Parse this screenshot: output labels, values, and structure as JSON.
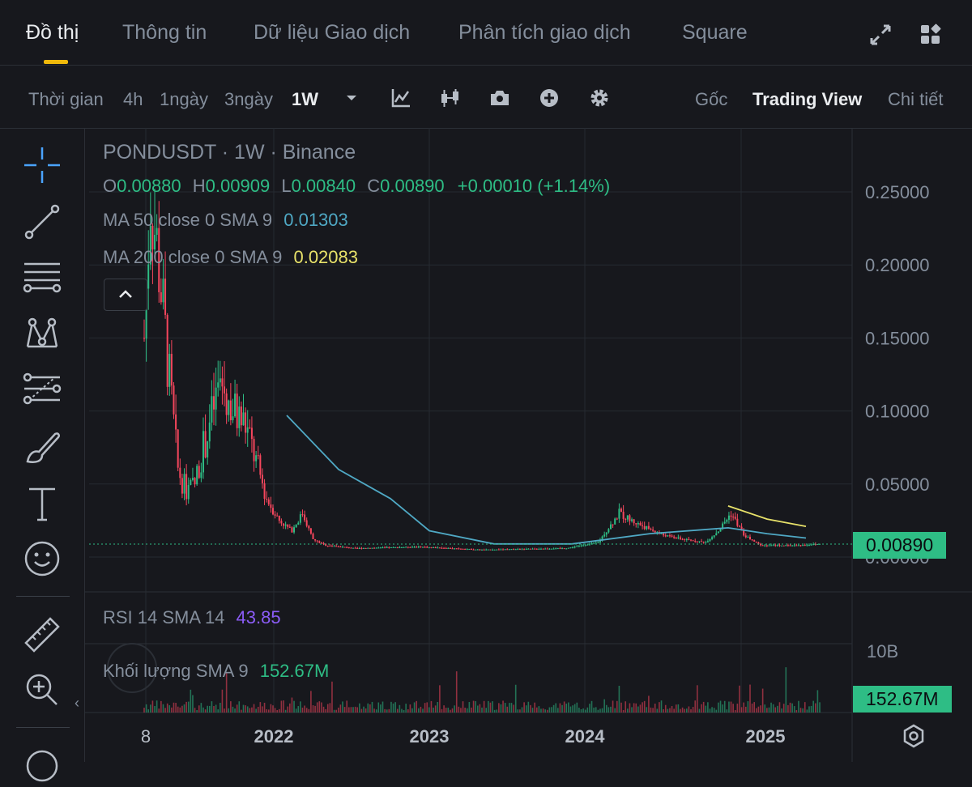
{
  "tabs": [
    {
      "label": "Đồ thị",
      "active": true
    },
    {
      "label": "Thông tin"
    },
    {
      "label": "Dữ liệu Giao dịch"
    },
    {
      "label": "Phân tích giao dịch"
    },
    {
      "label": "Square"
    }
  ],
  "toolbar": {
    "time_label": "Thời gian",
    "intervals": [
      "4h",
      "1ngày",
      "3ngày",
      "1W"
    ],
    "selected_interval": "1W",
    "views": [
      "Gốc",
      "Trading View",
      "Chi tiết"
    ],
    "selected_view": "Trading View"
  },
  "chart_header": {
    "symbol_line": "PONDUSDT · 1W · Binance",
    "o_label": "O",
    "o": "0.00880",
    "h_label": "H",
    "h": "0.00909",
    "l_label": "L",
    "l": "0.00840",
    "c_label": "C",
    "c": "0.00890",
    "change": "+0.00010 (+1.14%)"
  },
  "indicators": {
    "ma50_label": "MA 50 close 0 SMA 9",
    "ma50_value": "0.01303",
    "ma200_label": "MA 200 close 0 SMA 9",
    "ma200_value": "0.02083",
    "rsi_label": "RSI 14 SMA 14",
    "rsi_value": "43.85",
    "vol_label": "Khối lượng SMA 9",
    "vol_value": "152.67M"
  },
  "price_badge": "0.00890",
  "volume_badge": "152.67M",
  "volume_axis_label": "10B",
  "colors": {
    "up": "#2ebd85",
    "down": "#f6465d",
    "ma50": "#4fa8c4",
    "ma200": "#e8e26a",
    "rsi": "#8b5cf6",
    "accent": "#f0b90b",
    "background": "#17181d"
  },
  "chart_data": {
    "type": "candlestick",
    "title": "PONDUSDT · 1W · Binance",
    "y_ticks": [
      "0.00000",
      "0.05000",
      "0.10000",
      "0.15000",
      "0.20000",
      "0.25000"
    ],
    "ylim": [
      0,
      0.265
    ],
    "x_ticks": [
      "8",
      "2022",
      "2023",
      "2024",
      "2025"
    ],
    "last_close": 0.0089,
    "candles_approx": [
      {
        "date": "2021-08",
        "o": 0.14,
        "h": 0.29,
        "l": 0.13,
        "c": 0.2
      },
      {
        "date": "2021-09",
        "o": 0.2,
        "h": 0.22,
        "l": 0.09,
        "c": 0.1
      },
      {
        "date": "2021-10",
        "o": 0.1,
        "h": 0.11,
        "l": 0.045,
        "c": 0.055
      },
      {
        "date": "2021-11",
        "o": 0.055,
        "h": 0.185,
        "l": 0.05,
        "c": 0.11
      },
      {
        "date": "2021-12",
        "o": 0.11,
        "h": 0.12,
        "l": 0.08,
        "c": 0.095
      },
      {
        "date": "2022-01",
        "o": 0.095,
        "h": 0.1,
        "l": 0.06,
        "c": 0.07
      },
      {
        "date": "2022-02",
        "o": 0.07,
        "h": 0.075,
        "l": 0.04,
        "c": 0.045
      },
      {
        "date": "2022-03",
        "o": 0.045,
        "h": 0.05,
        "l": 0.03,
        "c": 0.04
      },
      {
        "date": "2022-05",
        "o": 0.04,
        "h": 0.04,
        "l": 0.005,
        "c": 0.01
      },
      {
        "date": "2023-01",
        "o": 0.007,
        "h": 0.009,
        "l": 0.005,
        "c": 0.006
      },
      {
        "date": "2023-10",
        "o": 0.006,
        "h": 0.008,
        "l": 0.005,
        "c": 0.007
      },
      {
        "date": "2024-03",
        "o": 0.02,
        "h": 0.042,
        "l": 0.018,
        "c": 0.03
      },
      {
        "date": "2024-06",
        "o": 0.025,
        "h": 0.028,
        "l": 0.012,
        "c": 0.015
      },
      {
        "date": "2024-12",
        "o": 0.02,
        "h": 0.036,
        "l": 0.015,
        "c": 0.025
      },
      {
        "date": "2025-06",
        "o": 0.0088,
        "h": 0.00909,
        "l": 0.0084,
        "c": 0.0089
      }
    ],
    "series": [
      {
        "name": "MA 50",
        "color": "#4fa8c4",
        "points": [
          [
            "2022-02",
            0.097
          ],
          [
            "2022-06",
            0.06
          ],
          [
            "2022-10",
            0.04
          ],
          [
            "2023-01",
            0.018
          ],
          [
            "2023-06",
            0.009
          ],
          [
            "2023-12",
            0.009
          ],
          [
            "2024-06",
            0.016
          ],
          [
            "2024-12",
            0.02
          ],
          [
            "2025-03",
            0.016
          ],
          [
            "2025-06",
            0.013
          ]
        ]
      },
      {
        "name": "MA 200",
        "color": "#e8e26a",
        "points": [
          [
            "2024-12",
            0.035
          ],
          [
            "2025-03",
            0.026
          ],
          [
            "2025-06",
            0.021
          ]
        ]
      }
    ],
    "rsi": {
      "value": 43.85
    },
    "volume": {
      "sma9": "152.67M",
      "axis_max": "10B"
    }
  }
}
